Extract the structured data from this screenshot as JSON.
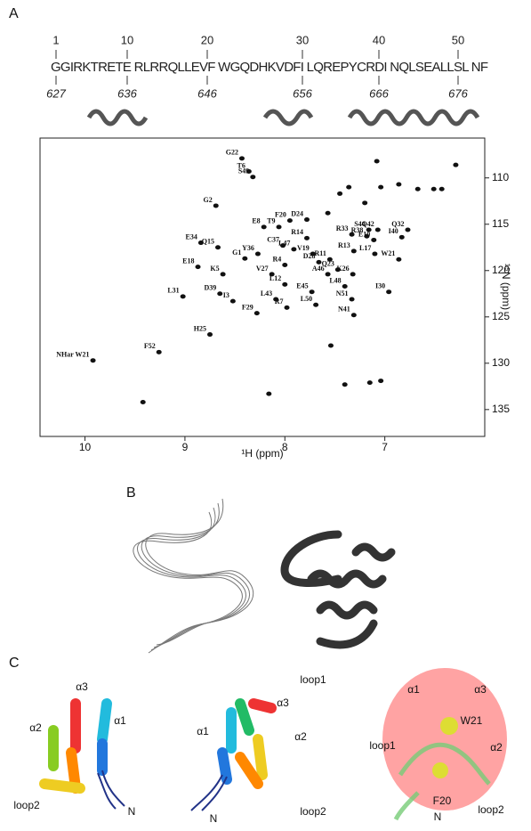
{
  "panel_a": {
    "label": "A",
    "sequence": "GGIRKTRETE RLRRQLLEVF WGQDHKVDFI LQREPYCRDI NQLSEALLSL NF",
    "sequence_numbers": [
      1,
      10,
      20,
      30,
      40,
      50
    ],
    "residue_numbers": [
      627,
      636,
      646,
      656,
      666,
      676
    ]
  },
  "chart_data": {
    "type": "scatter",
    "x_label": "¹H (ppm)",
    "y_label": "¹⁵N (ppm)",
    "xlim": [
      10.45,
      6.0
    ],
    "ylim": [
      137.9,
      105.7
    ],
    "xticks": [
      10,
      9,
      8,
      7
    ],
    "yticks": [
      110,
      115,
      120,
      125,
      130,
      135
    ],
    "color": "#111",
    "series": [
      {
        "name": "assigned",
        "point_labels": [
          "G22",
          "T6",
          "S49",
          "G2",
          "F20",
          "D24",
          "E8",
          "T9",
          "S44",
          "Q42",
          "Q32",
          "R33",
          "R38",
          "C37",
          "R14",
          "E10",
          "I40",
          "E34",
          "Q15",
          "L47",
          "Y36",
          "V19",
          "R13",
          "L17",
          "W21",
          "G1",
          "R4",
          "D28",
          "R11",
          "E18",
          "K5",
          "V27",
          "Q23",
          "A46",
          "K26",
          "L12",
          "E45",
          "L48",
          "L31",
          "D39",
          "I3",
          "L43",
          "N51",
          "I30",
          "R7",
          "L50",
          "F29",
          "N41",
          "H25",
          "F52",
          "NHar W21"
        ],
        "x": [
          8.43,
          8.36,
          8.32,
          8.69,
          7.95,
          7.78,
          8.21,
          8.06,
          7.16,
          7.07,
          6.77,
          7.33,
          7.18,
          8.02,
          7.78,
          7.11,
          6.83,
          8.84,
          8.67,
          7.91,
          8.27,
          7.72,
          7.31,
          7.1,
          6.86,
          8.4,
          8.0,
          7.66,
          7.55,
          8.87,
          8.62,
          8.13,
          7.47,
          7.57,
          7.32,
          8.0,
          7.73,
          7.4,
          9.02,
          8.65,
          8.52,
          8.09,
          7.33,
          6.96,
          7.98,
          7.69,
          8.28,
          7.31,
          8.75,
          9.26,
          9.92
        ],
        "values": [
          107.9,
          109.3,
          109.9,
          113.0,
          114.6,
          114.5,
          115.3,
          115.3,
          115.6,
          115.6,
          115.6,
          116.1,
          116.3,
          117.3,
          116.5,
          116.7,
          116.4,
          117.0,
          117.5,
          117.7,
          118.2,
          118.2,
          117.9,
          118.2,
          118.8,
          118.7,
          119.4,
          119.1,
          118.8,
          119.6,
          120.4,
          120.4,
          119.9,
          120.4,
          120.4,
          121.5,
          122.3,
          121.7,
          122.8,
          122.5,
          123.3,
          123.1,
          123.1,
          122.3,
          124.0,
          123.7,
          124.6,
          124.8,
          126.9,
          128.8,
          129.7
        ]
      },
      {
        "name": "unassigned",
        "x": [
          7.08,
          6.29,
          6.51,
          6.43,
          6.67,
          6.86,
          7.04,
          7.36,
          7.45,
          7.2,
          7.57,
          7.54,
          7.15,
          7.4,
          7.04,
          8.16,
          9.42
        ],
        "values": [
          108.2,
          108.6,
          111.2,
          111.2,
          111.2,
          110.7,
          111.0,
          111.0,
          111.7,
          112.7,
          113.8,
          128.1,
          132.1,
          132.3,
          131.9,
          133.3,
          134.2
        ]
      }
    ]
  },
  "panel_b": {
    "label": "B"
  },
  "panel_c": {
    "label": "C",
    "labels": [
      "α3",
      "α2",
      "α1",
      "loop2",
      "N",
      "α1",
      "α3",
      "loop1",
      "α2",
      "N",
      "loop2",
      "α1",
      "α3",
      "W21",
      "loop1",
      "α2",
      "F20",
      "N",
      "loop2"
    ]
  }
}
